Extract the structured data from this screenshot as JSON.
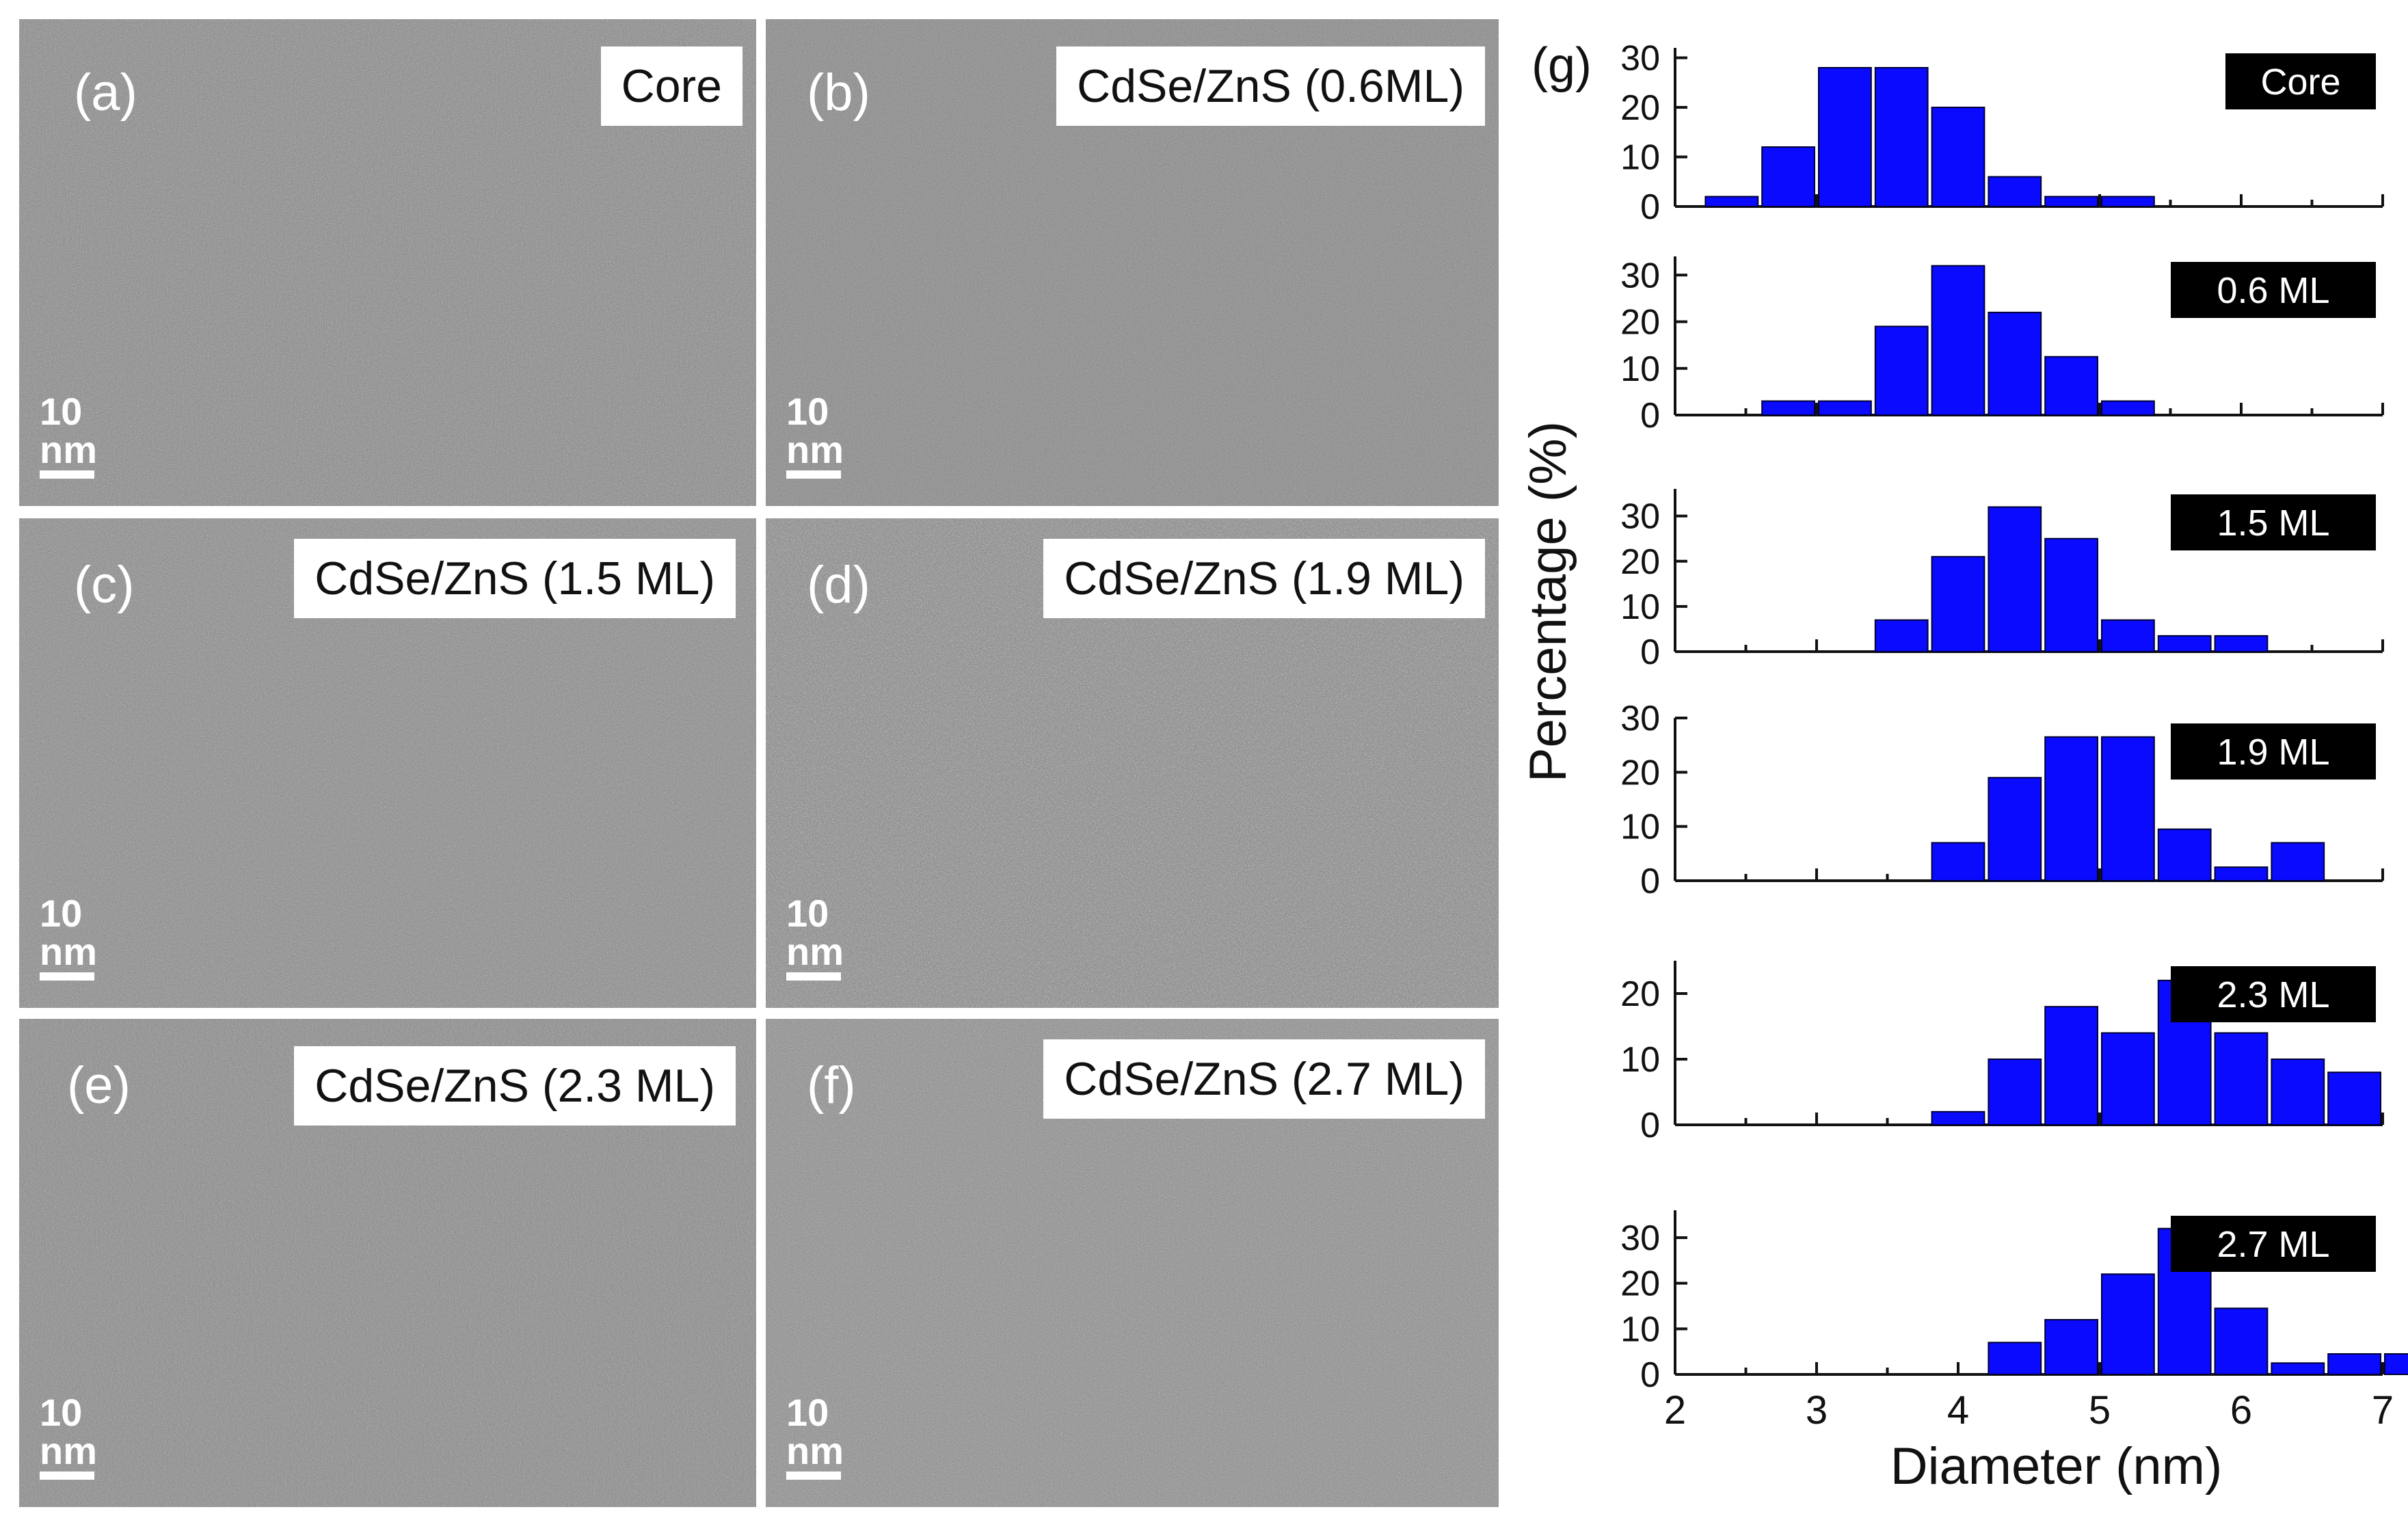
{
  "figure": {
    "panels": [
      {
        "id": "a",
        "label": "(a)",
        "tag": "Core",
        "scale": "10 nm"
      },
      {
        "id": "b",
        "label": "(b)",
        "tag": "CdSe/ZnS (0.6ML)",
        "scale": "10 nm"
      },
      {
        "id": "c",
        "label": "(c)",
        "tag": "CdSe/ZnS (1.5 ML)",
        "scale": "10 nm"
      },
      {
        "id": "d",
        "label": "(d)",
        "tag": "CdSe/ZnS (1.9 ML)",
        "scale": "10 nm"
      },
      {
        "id": "e",
        "label": "(e)",
        "tag": "CdSe/ZnS (2.3 ML)",
        "scale": "10 nm"
      },
      {
        "id": "f",
        "label": "(f)",
        "tag": "CdSe/ZnS (2.7 ML)",
        "scale": "10 nm"
      }
    ],
    "histogram_label": "(g)"
  },
  "chart_data": {
    "type": "bar",
    "xlabel": "Diameter (nm)",
    "ylabel": "Percentage (%)",
    "xlim": [
      2,
      7
    ],
    "xticks": [
      2,
      3,
      4,
      5,
      6,
      7
    ],
    "bin_width": 0.4,
    "colors": {
      "bar": "#0a0aff",
      "tag_bg": "#000000",
      "tag_text": "#ffffff"
    },
    "subplots": [
      {
        "name": "Core",
        "ylim": [
          0,
          32
        ],
        "yticks": [
          0,
          10,
          20,
          30
        ],
        "x": [
          2.4,
          2.8,
          3.2,
          3.6,
          4.0,
          4.4,
          4.8,
          5.2
        ],
        "values": [
          2,
          12,
          28,
          28,
          20,
          6,
          2,
          2
        ]
      },
      {
        "name": "0.6 ML",
        "ylim": [
          0,
          34
        ],
        "yticks": [
          0,
          10,
          20,
          30
        ],
        "x": [
          2.8,
          3.2,
          3.6,
          4.0,
          4.4,
          4.8,
          5.2
        ],
        "values": [
          3,
          3,
          19,
          32,
          22,
          12.5,
          3
        ]
      },
      {
        "name": "1.5 ML",
        "ylim": [
          0,
          36
        ],
        "yticks": [
          0,
          10,
          20,
          30
        ],
        "x": [
          3.6,
          4.0,
          4.4,
          4.8,
          5.2,
          5.6,
          6.0
        ],
        "values": [
          7,
          21,
          32,
          25,
          7,
          3.5,
          3.5
        ]
      },
      {
        "name": "1.9 ML",
        "ylim": [
          0,
          30
        ],
        "yticks": [
          0,
          10,
          20,
          30
        ],
        "x": [
          4.0,
          4.4,
          4.8,
          5.2,
          5.6,
          6.0,
          6.4
        ],
        "values": [
          7,
          19,
          26.5,
          26.5,
          9.5,
          2.5,
          7
        ]
      },
      {
        "name": "2.3 ML",
        "ylim": [
          0,
          25
        ],
        "yticks": [
          0,
          10,
          20
        ],
        "x": [
          4.0,
          4.4,
          4.8,
          5.2,
          5.6,
          6.0,
          6.4,
          6.8
        ],
        "values": [
          2,
          10,
          18,
          14,
          22,
          14,
          10,
          8
        ]
      },
      {
        "name": "2.7 ML",
        "ylim": [
          0,
          36
        ],
        "yticks": [
          0,
          10,
          20,
          30
        ],
        "x": [
          4.4,
          4.8,
          5.2,
          5.6,
          6.0,
          6.4,
          6.8,
          7.2
        ],
        "values": [
          7,
          12,
          22,
          32,
          14.5,
          2.5,
          4.5,
          4.5
        ]
      }
    ]
  }
}
